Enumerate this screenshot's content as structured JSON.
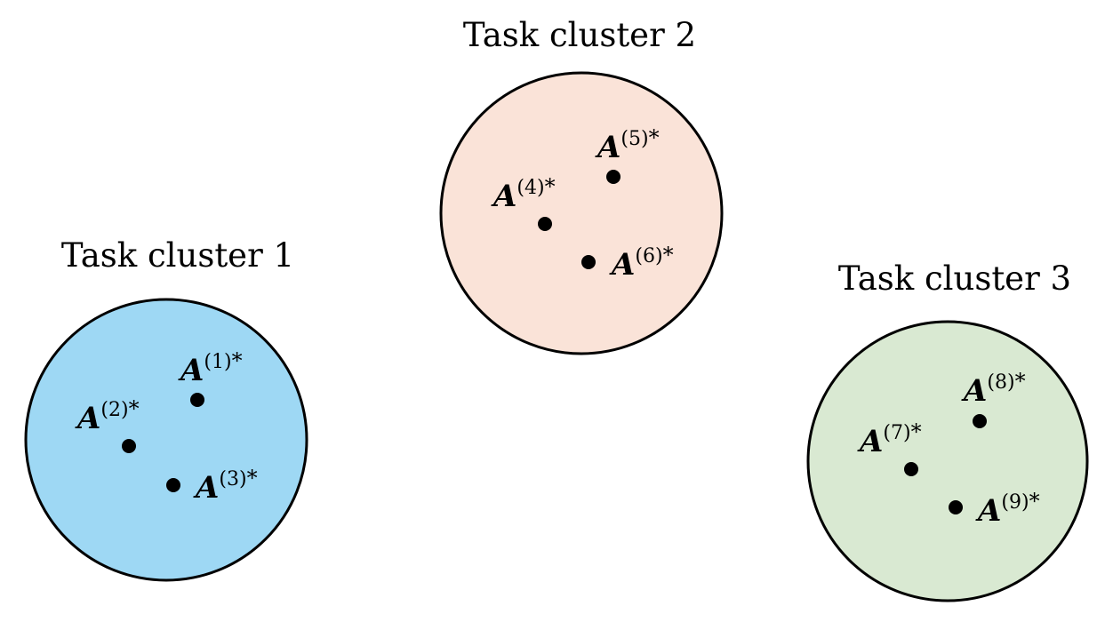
{
  "colors": {
    "cluster_1": "#9ed8f4",
    "cluster_2": "#fae3d8",
    "cluster_3": "#d9e9d2",
    "outline": "#000000",
    "point": "#000000"
  },
  "clusters": [
    {
      "title": "Task cluster 1",
      "points": [
        {
          "base": "A",
          "sup": "(1)",
          "star": "*"
        },
        {
          "base": "A",
          "sup": "(2)",
          "star": "*"
        },
        {
          "base": "A",
          "sup": "(3)",
          "star": "*"
        }
      ]
    },
    {
      "title": "Task cluster 2",
      "points": [
        {
          "base": "A",
          "sup": "(4)",
          "star": "*"
        },
        {
          "base": "A",
          "sup": "(5)",
          "star": "*"
        },
        {
          "base": "A",
          "sup": "(6)",
          "star": "*"
        }
      ]
    },
    {
      "title": "Task cluster 3",
      "points": [
        {
          "base": "A",
          "sup": "(7)",
          "star": "*"
        },
        {
          "base": "A",
          "sup": "(8)",
          "star": "*"
        },
        {
          "base": "A",
          "sup": "(9)",
          "star": "*"
        }
      ]
    }
  ]
}
